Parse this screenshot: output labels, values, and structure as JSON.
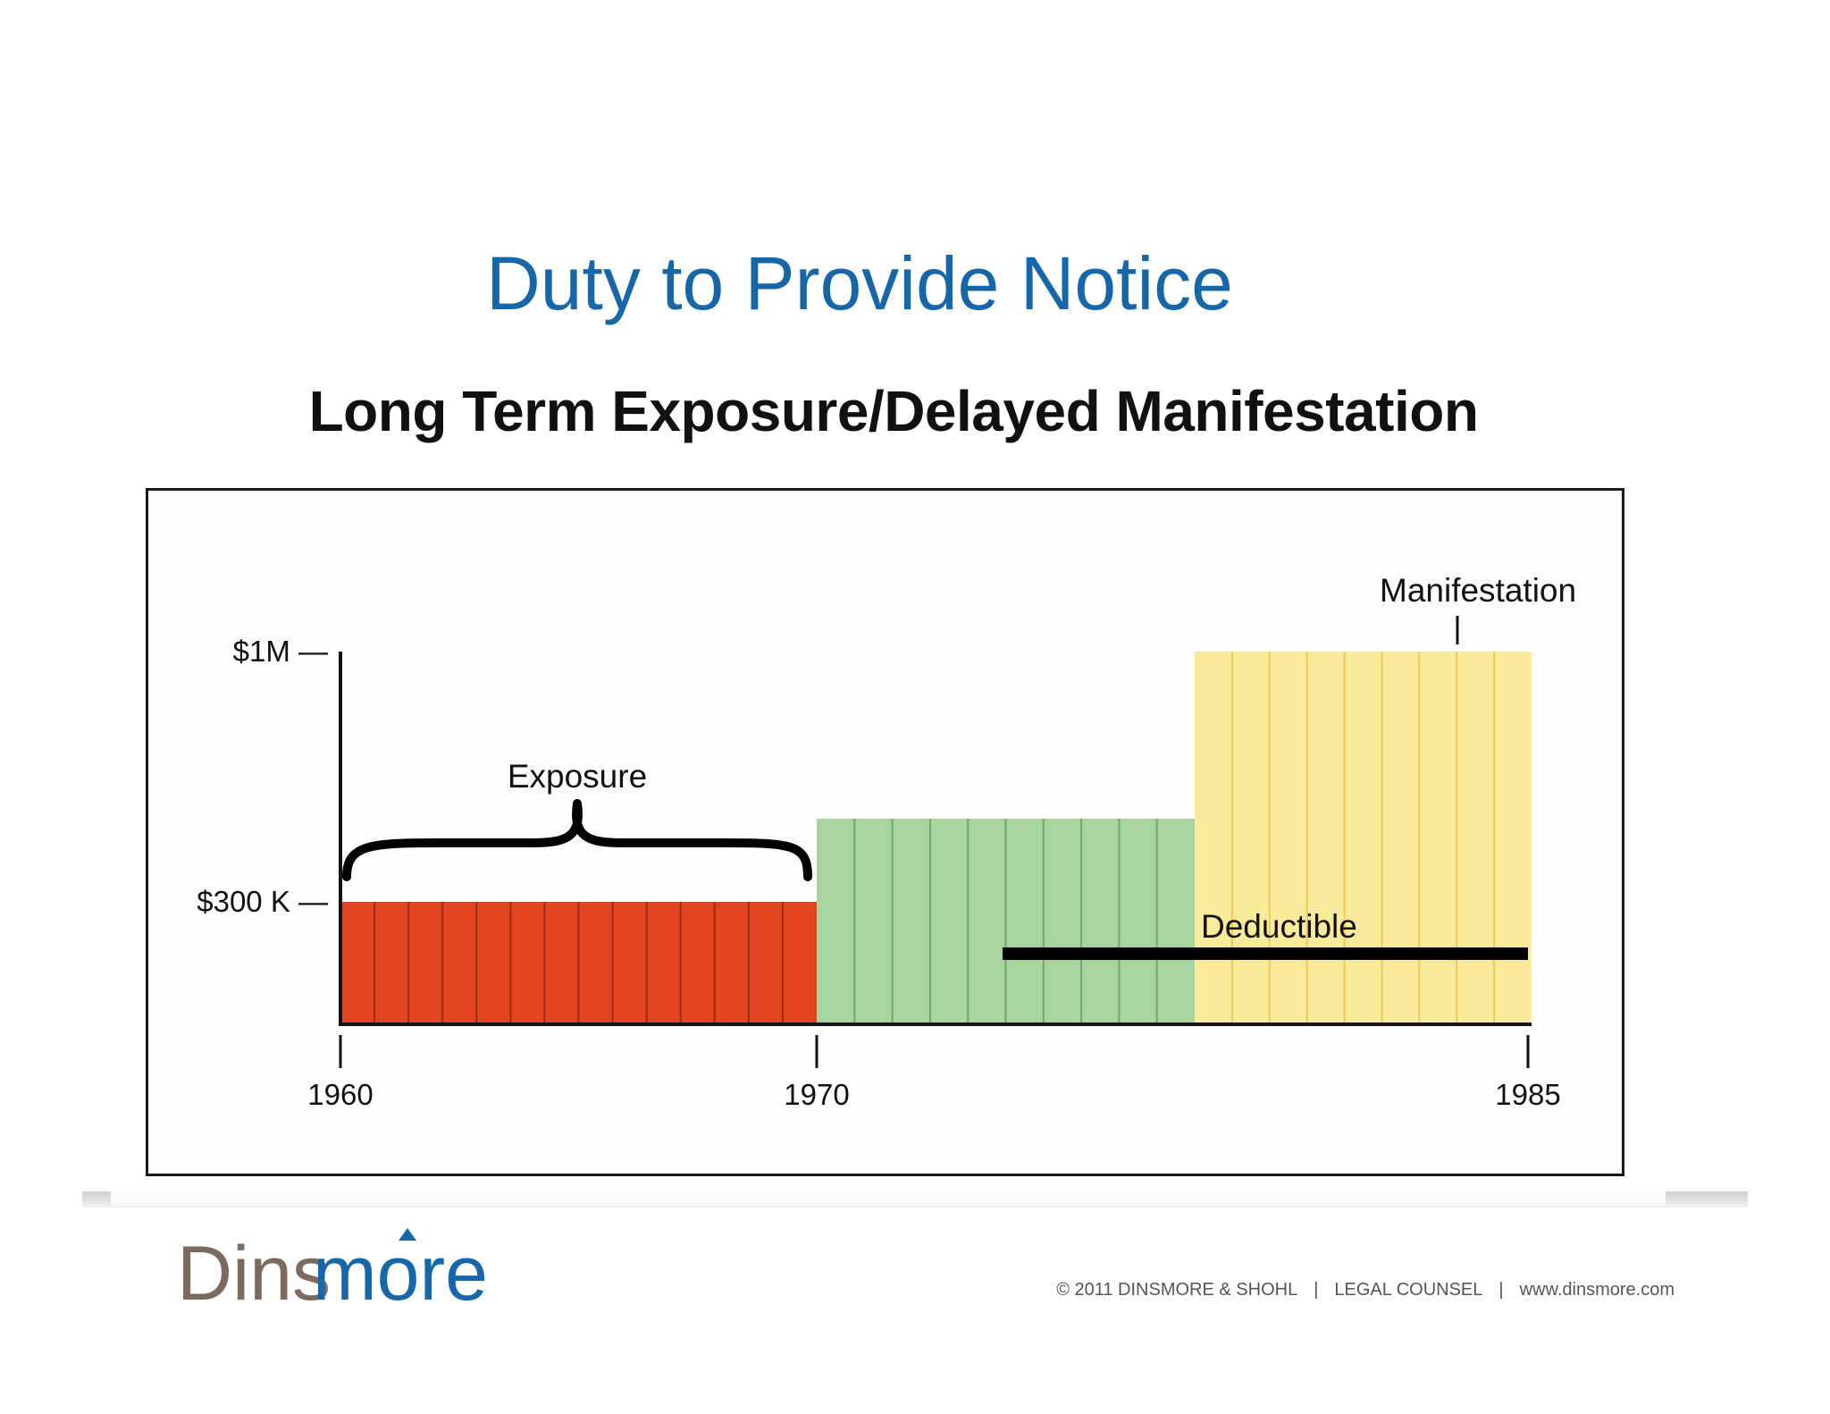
{
  "slide": {
    "title": "Duty to Provide Notice",
    "figure_title": "Long Term Exposure/Delayed Manifestation"
  },
  "diagram": {
    "y_labels": [
      "$1M —",
      "$300 K —"
    ],
    "x_labels": [
      "1960",
      "1970",
      "1985"
    ],
    "annotations": {
      "exposure": "Exposure",
      "deductible": "Deductible",
      "manifestation": "Manifestation"
    },
    "colors": {
      "exposure_block": "#e34520",
      "middle_block": "#a7d49f",
      "manifestation_block": "#f9eb9a",
      "deductible_line": "#000000"
    }
  },
  "footer": {
    "logo_text_dark": "Dins",
    "logo_text_blue": "more",
    "copyright": "© 2011 DINSMORE & SHOHL",
    "counsel": "LEGAL COUNSEL",
    "website": "www.dinsmore.com",
    "separator": "|"
  }
}
